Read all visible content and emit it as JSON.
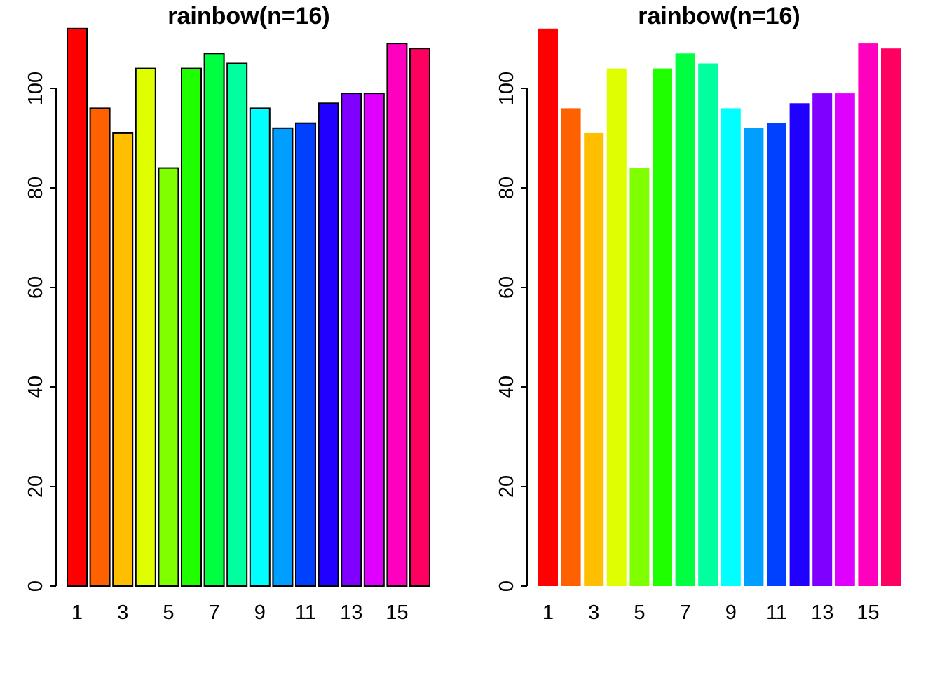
{
  "chart_data": [
    {
      "type": "bar",
      "title": "rainbow(n=16)",
      "xlabel": "",
      "ylabel": "",
      "categories": [
        "1",
        "2",
        "3",
        "4",
        "5",
        "6",
        "7",
        "8",
        "9",
        "10",
        "11",
        "12",
        "13",
        "14",
        "15",
        "16"
      ],
      "values": [
        112,
        96,
        91,
        104,
        84,
        104,
        107,
        105,
        96,
        92,
        93,
        97,
        99,
        99,
        109,
        108
      ],
      "colors": [
        "#FF0000",
        "#FF6000",
        "#FFBF00",
        "#DFFF00",
        "#80FF00",
        "#20FF00",
        "#00FF40",
        "#00FF9F",
        "#00FFFF",
        "#009FFF",
        "#0040FF",
        "#2000FF",
        "#8000FF",
        "#DF00FF",
        "#FF00BF",
        "#FF0060"
      ],
      "bar_border": true,
      "x_tick_labels": [
        "1",
        "3",
        "5",
        "7",
        "9",
        "11",
        "13",
        "15"
      ],
      "x_tick_categories": [
        "1",
        "3",
        "5",
        "7",
        "9",
        "11",
        "13",
        "15"
      ],
      "y_ticks": [
        "0",
        "20",
        "40",
        "60",
        "80",
        "100"
      ],
      "ylim": [
        0,
        112
      ],
      "grid": false
    },
    {
      "type": "bar",
      "title": "rainbow(n=16)",
      "xlabel": "",
      "ylabel": "",
      "categories": [
        "1",
        "2",
        "3",
        "4",
        "5",
        "6",
        "7",
        "8",
        "9",
        "10",
        "11",
        "12",
        "13",
        "14",
        "15",
        "16"
      ],
      "values": [
        112,
        96,
        91,
        104,
        84,
        104,
        107,
        105,
        96,
        92,
        93,
        97,
        99,
        99,
        109,
        108
      ],
      "colors": [
        "#FF0000",
        "#FF6000",
        "#FFBF00",
        "#DFFF00",
        "#80FF00",
        "#20FF00",
        "#00FF40",
        "#00FF9F",
        "#00FFFF",
        "#009FFF",
        "#0040FF",
        "#2000FF",
        "#8000FF",
        "#DF00FF",
        "#FF00BF",
        "#FF0060"
      ],
      "bar_border": false,
      "x_tick_labels": [
        "1",
        "3",
        "5",
        "7",
        "9",
        "11",
        "13",
        "15"
      ],
      "x_tick_categories": [
        "1",
        "3",
        "5",
        "7",
        "9",
        "11",
        "13",
        "15"
      ],
      "y_ticks": [
        "0",
        "20",
        "40",
        "60",
        "80",
        "100"
      ],
      "ylim": [
        0,
        112
      ],
      "grid": false
    }
  ]
}
